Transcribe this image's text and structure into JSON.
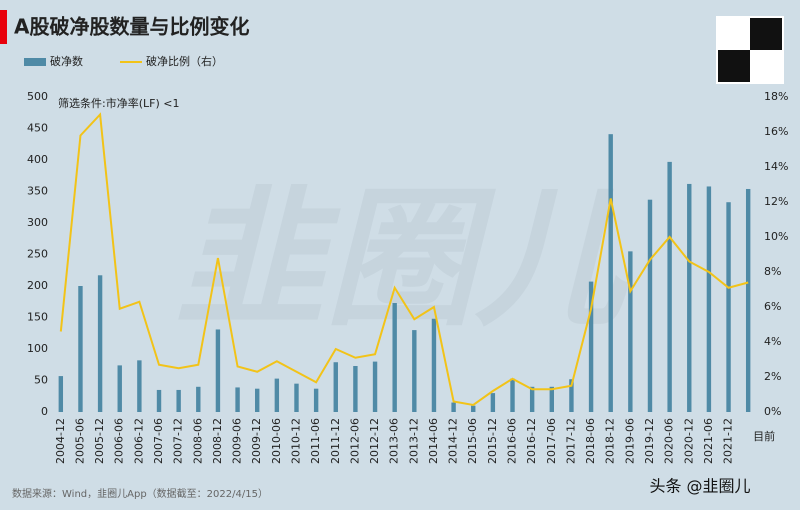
{
  "chart_data": {
    "type": "bar-line",
    "title": "A股破净股数量与比例变化",
    "annotation": "筛选条件:市净率(LF) <1",
    "source": "数据来源：Wind，韭圈儿App（数据截至：2022/4/15）",
    "watermark": "韭圈儿",
    "credit": "头条 @韭圈儿",
    "categories": [
      "2004-12",
      "2005-06",
      "2005-12",
      "2006-06",
      "2006-12",
      "2007-06",
      "2007-12",
      "2008-06",
      "2008-12",
      "2009-06",
      "2009-12",
      "2010-06",
      "2010-12",
      "2011-06",
      "2011-12",
      "2012-06",
      "2012-12",
      "2013-06",
      "2013-12",
      "2014-06",
      "2014-12",
      "2015-06",
      "2015-12",
      "2016-06",
      "2016-12",
      "2017-06",
      "2017-12",
      "2018-06",
      "2018-12",
      "2019-06",
      "2019-12",
      "2020-06",
      "2020-12",
      "2021-06",
      "2021-12",
      "目前"
    ],
    "series": [
      {
        "name": "破净数",
        "color": "#4f8aa6",
        "values": [
          57,
          200,
          217,
          74,
          82,
          35,
          35,
          40,
          131,
          39,
          37,
          53,
          45,
          37,
          79,
          73,
          80,
          173,
          130,
          148,
          15,
          10,
          30,
          53,
          40,
          40,
          52,
          207,
          441,
          255,
          337,
          397,
          362,
          358,
          333,
          354
        ]
      },
      {
        "name": "破净比例（右）",
        "color": "#f2c318",
        "axis": "y2",
        "values": [
          4.6,
          15.8,
          17.0,
          5.9,
          6.3,
          2.7,
          2.5,
          2.7,
          8.8,
          2.6,
          2.3,
          2.9,
          2.3,
          1.7,
          3.6,
          3.1,
          3.3,
          7.1,
          5.3,
          6.0,
          0.6,
          0.4,
          1.2,
          1.9,
          1.3,
          1.3,
          1.5,
          5.9,
          12.2,
          6.9,
          8.7,
          10.0,
          8.6,
          8.0,
          7.1,
          7.4
        ]
      }
    ],
    "ylim": [
      0,
      500
    ],
    "yticks": [
      0,
      50,
      100,
      150,
      200,
      250,
      300,
      350,
      400,
      450,
      500
    ],
    "y2lim": [
      0,
      18
    ],
    "y2ticks": [
      {
        "value": 0,
        "label": "0%"
      },
      {
        "value": 2,
        "label": "2%"
      },
      {
        "value": 4,
        "label": "4%"
      },
      {
        "value": 6,
        "label": "6%"
      },
      {
        "value": 8,
        "label": "8%"
      },
      {
        "value": 10,
        "label": "10%"
      },
      {
        "value": 12,
        "label": "12%"
      },
      {
        "value": 14,
        "label": "14%"
      },
      {
        "value": 16,
        "label": "16%"
      },
      {
        "value": 18,
        "label": "18%"
      }
    ],
    "grid": false
  }
}
